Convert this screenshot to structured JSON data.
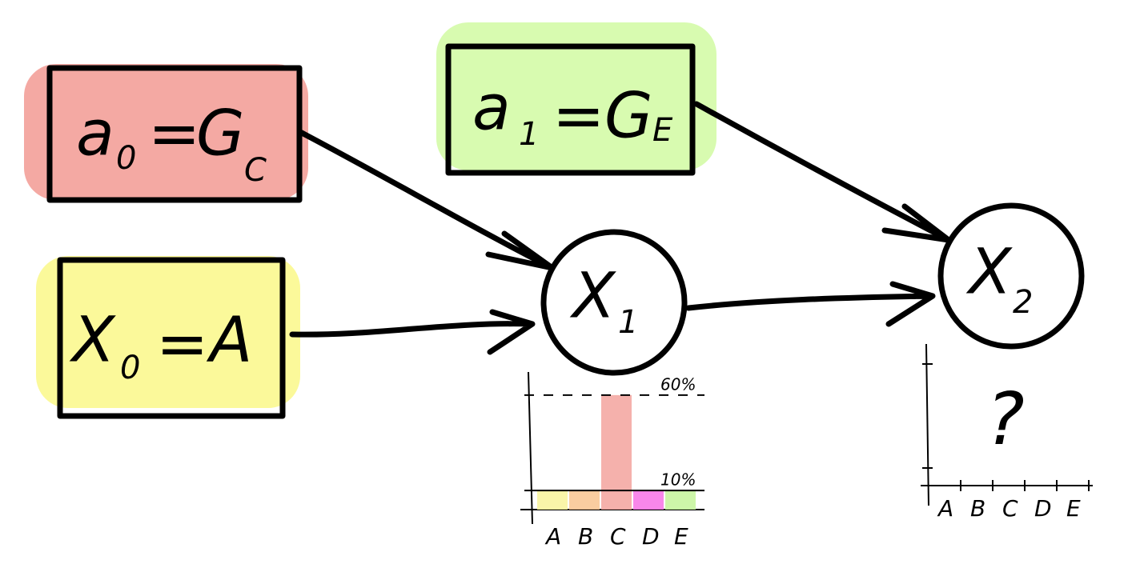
{
  "nodes": [
    {
      "lhs": "a",
      "lhs_sub": "0",
      "eq": "=",
      "rhs": "G",
      "rhs_sub": "C",
      "color": "#f4a9a3"
    },
    {
      "lhs": "a",
      "lhs_sub": "1",
      "eq": "=",
      "rhs": "G",
      "rhs_sub": "E",
      "color": "#d8fbb0"
    },
    {
      "lhs": "X",
      "lhs_sub": "0",
      "eq": "=",
      "rhs": "A",
      "color": "#fbf99a"
    },
    {
      "lhs": "X",
      "lhs_sub": "1"
    },
    {
      "lhs": "X",
      "lhs_sub": "2"
    }
  ],
  "x1_distribution": {
    "type": "bar",
    "categories": [
      "A",
      "B",
      "C",
      "D",
      "E"
    ],
    "values": [
      10,
      10,
      60,
      10,
      10
    ],
    "colors": [
      "#f8f4a0",
      "#f9c896",
      "#f4a9a3",
      "#f77ae8",
      "#c8f5a0"
    ],
    "ylim": [
      0,
      70
    ],
    "yticks": [
      {
        "value": 10,
        "label": "10%"
      },
      {
        "value": 60,
        "label": "60%"
      }
    ]
  },
  "x2_distribution": {
    "categories": [
      "A",
      "B",
      "C",
      "D",
      "E"
    ],
    "annotation": "?"
  }
}
